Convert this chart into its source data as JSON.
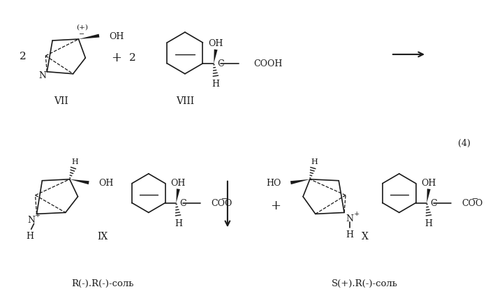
{
  "bg_color": "#ffffff",
  "text_color": "#1a1a1a",
  "line_color": "#1a1a1a",
  "figsize": [
    6.99,
    4.35
  ],
  "dpi": 100,
  "label_VII": "VII",
  "label_VIII": "VIII",
  "label_IX": "IX",
  "label_X": "X",
  "label_4": "(4)",
  "label_rx1": "R(-).R(-)-соль",
  "label_rx2": "S(+).R(-)-соль"
}
